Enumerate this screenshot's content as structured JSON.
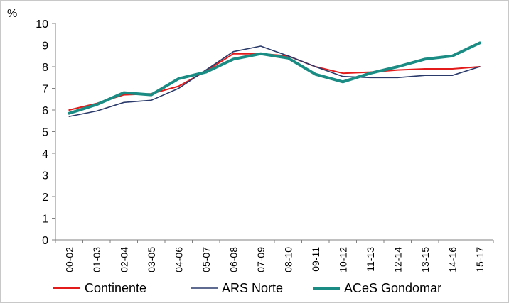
{
  "chart_data": {
    "type": "line",
    "ylabel": "%",
    "ylim": [
      0,
      10
    ],
    "yticks": [
      0,
      1,
      2,
      3,
      4,
      5,
      6,
      7,
      8,
      9,
      10
    ],
    "categories": [
      "00-02",
      "01-03",
      "02-04",
      "03-05",
      "04-06",
      "05-07",
      "06-08",
      "07-09",
      "08-10",
      "09-11",
      "10-12",
      "11-13",
      "12-14",
      "13-15",
      "14-16",
      "15-17"
    ],
    "series": [
      {
        "name": "Continente",
        "color": "#e31b1b",
        "values": [
          6.0,
          6.3,
          6.7,
          6.75,
          7.1,
          7.8,
          8.6,
          8.6,
          8.5,
          8.0,
          7.7,
          7.75,
          7.85,
          7.9,
          7.9,
          8.0
        ]
      },
      {
        "name": "ARS Norte",
        "color": "#2a3a6b",
        "values": [
          5.7,
          5.95,
          6.35,
          6.45,
          7.0,
          7.85,
          8.7,
          8.95,
          8.5,
          8.0,
          7.55,
          7.5,
          7.5,
          7.6,
          7.6,
          8.0
        ]
      },
      {
        "name": "ACeS Gondomar",
        "color": "#1a8c84",
        "values": [
          5.85,
          6.25,
          6.8,
          6.7,
          7.45,
          7.75,
          8.35,
          8.6,
          8.4,
          7.65,
          7.3,
          7.7,
          8.0,
          8.35,
          8.5,
          9.1
        ]
      }
    ],
    "legend_position": "bottom",
    "grid": false
  }
}
